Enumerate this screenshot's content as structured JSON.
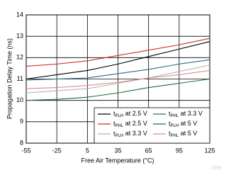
{
  "chart_data": {
    "type": "line",
    "x_label": "Free Air Temperature (°C)",
    "y_label": "Propagation Delay Time (ns)",
    "figure_id": "C006",
    "x": [
      -55,
      -25,
      5,
      35,
      65,
      95,
      125
    ],
    "xlim": [
      -55,
      125
    ],
    "xticks": [
      -55,
      -25,
      5,
      35,
      65,
      95,
      125
    ],
    "ylim": [
      8,
      14
    ],
    "yticks": [
      8,
      9,
      10,
      11,
      12,
      13,
      14
    ],
    "grid": true,
    "legend": "lower right",
    "series": [
      {
        "name": "tPLH at 2.5 V",
        "color": "#000000",
        "values": [
          11.0,
          11.2,
          11.4,
          11.7,
          12.05,
          12.4,
          12.75
        ]
      },
      {
        "name": "tPHL at 2.5 V",
        "color": "#d42a2a",
        "values": [
          11.6,
          11.7,
          11.85,
          12.1,
          12.35,
          12.6,
          12.9
        ]
      },
      {
        "name": "tPLH at 3.3 V",
        "color": "#b4b4b4",
        "values": [
          10.35,
          10.45,
          10.55,
          10.8,
          11.05,
          11.35,
          11.65
        ]
      },
      {
        "name": "tPHL at 3.3 V",
        "color": "#2e6a86",
        "values": [
          10.95,
          11.0,
          11.05,
          11.25,
          11.45,
          11.7,
          11.9
        ]
      },
      {
        "name": "tPLH at 5 V",
        "color": "#1f6a45",
        "values": [
          10.0,
          10.05,
          10.15,
          10.35,
          10.6,
          10.8,
          11.0
        ]
      },
      {
        "name": "tPHL at 5 V",
        "color": "#e48a8a",
        "values": [
          10.55,
          10.6,
          10.7,
          10.85,
          11.05,
          11.2,
          11.4
        ]
      }
    ]
  }
}
